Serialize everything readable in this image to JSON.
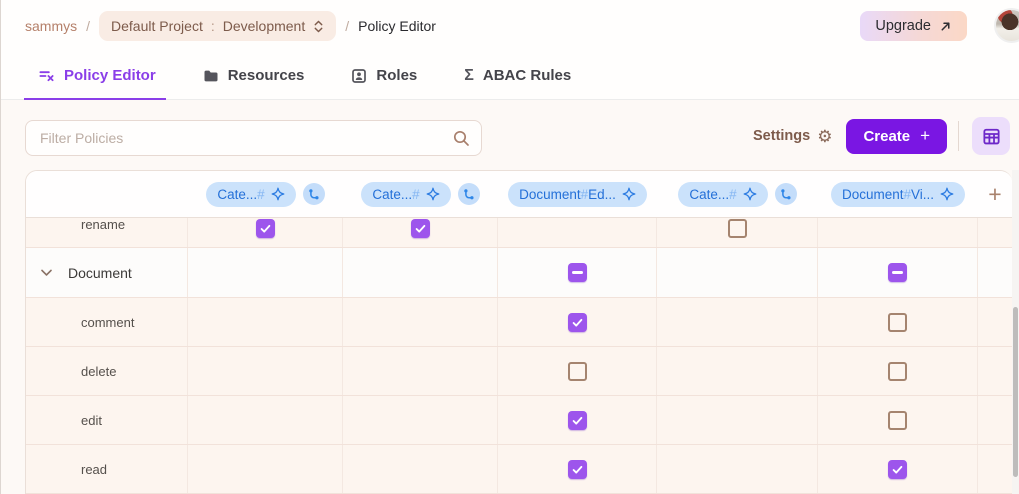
{
  "colors": {
    "accent_purple": "#7a16e3",
    "checkbox_purple": "#9d55ec",
    "tab_active_purple": "#8a3ee8",
    "badge_bg": "#cbe2fb",
    "badge_text": "#2470d8",
    "cream_row": "#fdf5ef",
    "brown_text": "#7d5b4b",
    "unchecked_border": "#a5846f"
  },
  "topbar": {
    "org": "sammys",
    "separator": "/",
    "project_pill": {
      "project": "Default Project",
      "colon": ":",
      "environment": "Development"
    },
    "page": "Policy Editor",
    "upgrade_label": "Upgrade"
  },
  "tabs": [
    {
      "id": "policy-editor",
      "label": "Policy Editor",
      "icon": "policy-filter-icon",
      "active": true
    },
    {
      "id": "resources",
      "label": "Resources",
      "icon": "folder-icon",
      "active": false
    },
    {
      "id": "roles",
      "label": "Roles",
      "icon": "id-card-icon",
      "active": false
    },
    {
      "id": "abac-rules",
      "label": "ABAC Rules",
      "icon": "sigma-icon",
      "active": false
    }
  ],
  "toolbar": {
    "filter_placeholder": "Filter Policies",
    "settings_label": "Settings",
    "create_label": "Create",
    "create_plus": "+"
  },
  "view_toggles": [
    {
      "id": "grid",
      "icon": "grid-view-icon",
      "active": true
    },
    {
      "id": "list",
      "icon": "list-view-icon",
      "active": false
    }
  ],
  "table": {
    "add_column_label": "+",
    "columns": [
      {
        "prefix": "Cate...",
        "hash": "#",
        "suffix": "",
        "derived_badge": true
      },
      {
        "prefix": "Cate...",
        "hash": "#",
        "suffix": "",
        "derived_badge": true
      },
      {
        "prefix": "Document",
        "hash": "#",
        "suffix": "Ed...",
        "derived_badge": false
      },
      {
        "prefix": "Cate...",
        "hash": "#",
        "suffix": "",
        "derived_badge": true
      },
      {
        "prefix": "Document",
        "hash": "#",
        "suffix": "Vi...",
        "derived_badge": false
      }
    ],
    "rows": [
      {
        "type": "action",
        "label": "rename",
        "clipped": true,
        "cells": [
          "checked",
          "checked",
          "",
          "unchecked",
          ""
        ]
      },
      {
        "type": "group",
        "label": "Document",
        "cells": [
          "",
          "",
          "indeterminate",
          "",
          "indeterminate"
        ]
      },
      {
        "type": "action",
        "label": "comment",
        "cells": [
          "",
          "",
          "checked",
          "",
          "unchecked"
        ]
      },
      {
        "type": "action",
        "label": "delete",
        "cells": [
          "",
          "",
          "unchecked",
          "",
          "unchecked"
        ]
      },
      {
        "type": "action",
        "label": "edit",
        "cells": [
          "",
          "",
          "checked",
          "",
          "unchecked"
        ]
      },
      {
        "type": "action",
        "label": "read",
        "cells": [
          "",
          "",
          "checked",
          "",
          "checked"
        ]
      }
    ]
  }
}
